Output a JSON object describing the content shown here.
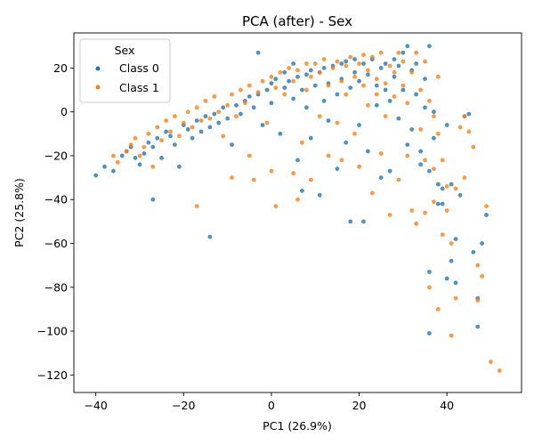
{
  "chart_data": {
    "type": "scatter",
    "title": "PCA (after) - Sex",
    "xlabel": "PC1 (26.9%)",
    "ylabel": "PC2 (25.8%)",
    "xlim": [
      -45,
      57
    ],
    "ylim": [
      -128,
      36
    ],
    "xticks": [
      -40,
      -20,
      0,
      20,
      40
    ],
    "yticks": [
      20,
      0,
      -20,
      -40,
      -60,
      -80,
      -100,
      -120
    ],
    "grid": false,
    "legend": {
      "title": "Sex",
      "placement": "top-left"
    },
    "series": [
      {
        "name": "Class 0",
        "color": "#1f77b4",
        "points": [
          [
            -40,
            -29
          ],
          [
            -38,
            -25
          ],
          [
            -36,
            -27
          ],
          [
            -34,
            -20
          ],
          [
            -33,
            -18
          ],
          [
            -32,
            -16
          ],
          [
            -31,
            -21
          ],
          [
            -30,
            -24
          ],
          [
            -29,
            -19
          ],
          [
            -28,
            -14
          ],
          [
            -27,
            -40
          ],
          [
            -27,
            -16
          ],
          [
            -26,
            -12
          ],
          [
            -25,
            -21
          ],
          [
            -24,
            -9
          ],
          [
            -23,
            -11
          ],
          [
            -22,
            -15
          ],
          [
            -21,
            -25
          ],
          [
            -20,
            -6
          ],
          [
            -19,
            -8
          ],
          [
            -18,
            -12
          ],
          [
            -17,
            -4
          ],
          [
            -16,
            -9
          ],
          [
            -15,
            -2
          ],
          [
            -14,
            -57
          ],
          [
            -14,
            -7
          ],
          [
            -13,
            -1
          ],
          [
            -12,
            -5
          ],
          [
            -11,
            2
          ],
          [
            -10,
            -3
          ],
          [
            -9,
            -15
          ],
          [
            -8,
            3
          ],
          [
            -7,
            -1
          ],
          [
            -6,
            5
          ],
          [
            -5,
            7
          ],
          [
            -4,
            2
          ],
          [
            -3,
            27
          ],
          [
            -3,
            8
          ],
          [
            -2,
            -6
          ],
          [
            -1,
            10
          ],
          [
            0,
            13
          ],
          [
            0,
            4
          ],
          [
            1,
            15
          ],
          [
            2,
            -10
          ],
          [
            3,
            11
          ],
          [
            3,
            18
          ],
          [
            4,
            14
          ],
          [
            5,
            6
          ],
          [
            5,
            22
          ],
          [
            6,
            -22
          ],
          [
            6,
            16
          ],
          [
            7,
            -36
          ],
          [
            7,
            10
          ],
          [
            8,
            17
          ],
          [
            8,
            2
          ],
          [
            9,
            19
          ],
          [
            9,
            -12
          ],
          [
            10,
            12
          ],
          [
            11,
            -38
          ],
          [
            11,
            18
          ],
          [
            12,
            5
          ],
          [
            12,
            20
          ],
          [
            13,
            -4
          ],
          [
            13,
            13
          ],
          [
            14,
            21
          ],
          [
            15,
            8
          ],
          [
            15,
            -26
          ],
          [
            16,
            22
          ],
          [
            16,
            15
          ],
          [
            17,
            -14
          ],
          [
            17,
            23
          ],
          [
            18,
            11
          ],
          [
            18,
            -50
          ],
          [
            19,
            18
          ],
          [
            19,
            24
          ],
          [
            20,
            -6
          ],
          [
            20,
            14
          ],
          [
            21,
            -50
          ],
          [
            21,
            22
          ],
          [
            22,
            17
          ],
          [
            22,
            -18
          ],
          [
            23,
            24
          ],
          [
            24,
            3
          ],
          [
            24,
            12
          ],
          [
            25,
            20
          ],
          [
            25,
            -30
          ],
          [
            26,
            10
          ],
          [
            26,
            22
          ],
          [
            27,
            5
          ],
          [
            27,
            -27
          ],
          [
            28,
            16
          ],
          [
            28,
            24
          ],
          [
            29,
            -3
          ],
          [
            29,
            21
          ],
          [
            30,
            27
          ],
          [
            30,
            10
          ],
          [
            31,
            -15
          ],
          [
            31,
            30
          ],
          [
            32,
            19
          ],
          [
            32,
            -8
          ],
          [
            33,
            8
          ],
          [
            33,
            22
          ],
          [
            34,
            -18
          ],
          [
            34,
            -24
          ],
          [
            35,
            15
          ],
          [
            35,
            2
          ],
          [
            36,
            -27
          ],
          [
            36,
            30
          ],
          [
            36,
            -73
          ],
          [
            36,
            -101
          ],
          [
            37,
            -12
          ],
          [
            37,
            0
          ],
          [
            38,
            -42
          ],
          [
            38,
            -33
          ],
          [
            39,
            -35
          ],
          [
            39,
            -42
          ],
          [
            40,
            -76
          ],
          [
            40,
            -6
          ],
          [
            41,
            -68
          ],
          [
            41,
            -33
          ],
          [
            42,
            -58
          ],
          [
            42,
            -78
          ],
          [
            43,
            -38
          ],
          [
            44,
            -2
          ],
          [
            45,
            -1
          ],
          [
            47,
            -85
          ],
          [
            47,
            -98
          ],
          [
            48,
            -60
          ],
          [
            49,
            -47
          ],
          [
            46,
            -64
          ]
        ]
      },
      {
        "name": "Class 1",
        "color": "#ff7f0e",
        "points": [
          [
            -36,
            -20
          ],
          [
            -35,
            -23
          ],
          [
            -33,
            -18
          ],
          [
            -32,
            -15
          ],
          [
            -31,
            -12
          ],
          [
            -30,
            -20
          ],
          [
            -29,
            -16
          ],
          [
            -28,
            -10
          ],
          [
            -27,
            -25
          ],
          [
            -26,
            -7
          ],
          [
            -25,
            -13
          ],
          [
            -24,
            -4
          ],
          [
            -23,
            -9
          ],
          [
            -22,
            -2
          ],
          [
            -21,
            -11
          ],
          [
            -20,
            -5
          ],
          [
            -19,
            0
          ],
          [
            -18,
            -7
          ],
          [
            -17,
            -43
          ],
          [
            -17,
            2
          ],
          [
            -16,
            -4
          ],
          [
            -15,
            5
          ],
          [
            -14,
            -3
          ],
          [
            -13,
            7
          ],
          [
            -12,
            0
          ],
          [
            -11,
            -11
          ],
          [
            -10,
            3
          ],
          [
            -9,
            -30
          ],
          [
            -9,
            8
          ],
          [
            -8,
            -2
          ],
          [
            -7,
            10
          ],
          [
            -6,
            4
          ],
          [
            -5,
            -20
          ],
          [
            -5,
            12
          ],
          [
            -4,
            -31
          ],
          [
            -3,
            9
          ],
          [
            -2,
            14
          ],
          [
            -1,
            -5
          ],
          [
            0,
            16
          ],
          [
            0,
            -27
          ],
          [
            1,
            11
          ],
          [
            1,
            -43
          ],
          [
            2,
            18
          ],
          [
            3,
            8
          ],
          [
            4,
            20
          ],
          [
            5,
            -28
          ],
          [
            5,
            14
          ],
          [
            6,
            -40
          ],
          [
            6,
            19
          ],
          [
            7,
            -14
          ],
          [
            8,
            22
          ],
          [
            8,
            10
          ],
          [
            9,
            -31
          ],
          [
            9,
            16
          ],
          [
            10,
            22
          ],
          [
            11,
            -2
          ],
          [
            11,
            18
          ],
          [
            12,
            24
          ],
          [
            13,
            -20
          ],
          [
            13,
            12
          ],
          [
            14,
            20
          ],
          [
            15,
            -5
          ],
          [
            15,
            23
          ],
          [
            16,
            14
          ],
          [
            16,
            -22
          ],
          [
            17,
            21
          ],
          [
            17,
            8
          ],
          [
            18,
            25
          ],
          [
            19,
            -10
          ],
          [
            19,
            16
          ],
          [
            20,
            22
          ],
          [
            20,
            -25
          ],
          [
            21,
            12
          ],
          [
            21,
            26
          ],
          [
            22,
            3
          ],
          [
            22,
            19
          ],
          [
            23,
            -37
          ],
          [
            23,
            25
          ],
          [
            24,
            8
          ],
          [
            24,
            15
          ],
          [
            25,
            -19
          ],
          [
            25,
            27
          ],
          [
            26,
            13
          ],
          [
            26,
            -2
          ],
          [
            27,
            21
          ],
          [
            27,
            -47
          ],
          [
            28,
            18
          ],
          [
            28,
            7
          ],
          [
            29,
            27
          ],
          [
            29,
            -31
          ],
          [
            30,
            12
          ],
          [
            30,
            23
          ],
          [
            31,
            -20
          ],
          [
            31,
            4
          ],
          [
            32,
            -45
          ],
          [
            32,
            18
          ],
          [
            33,
            27
          ],
          [
            34,
            -8
          ],
          [
            34,
            10
          ],
          [
            35,
            -22
          ],
          [
            35,
            23
          ],
          [
            36,
            -80
          ],
          [
            36,
            5
          ],
          [
            37,
            -26
          ],
          [
            37,
            -2
          ],
          [
            38,
            -90
          ],
          [
            38,
            16
          ],
          [
            39,
            -22
          ],
          [
            40,
            -34
          ],
          [
            40,
            -45
          ],
          [
            41,
            -60
          ],
          [
            42,
            -85
          ],
          [
            42,
            -35
          ],
          [
            43,
            -7
          ],
          [
            44,
            -2
          ],
          [
            45,
            -9
          ],
          [
            46,
            -16
          ],
          [
            47,
            -86
          ],
          [
            47,
            -70
          ],
          [
            48,
            -75
          ],
          [
            49,
            -43
          ],
          [
            50,
            -114
          ],
          [
            52,
            -118
          ],
          [
            38,
            -10
          ],
          [
            44,
            -30
          ],
          [
            41,
            -102
          ],
          [
            39,
            -56
          ],
          [
            35,
            -46
          ],
          [
            33,
            -51
          ],
          [
            37,
            -41
          ]
        ]
      }
    ]
  }
}
